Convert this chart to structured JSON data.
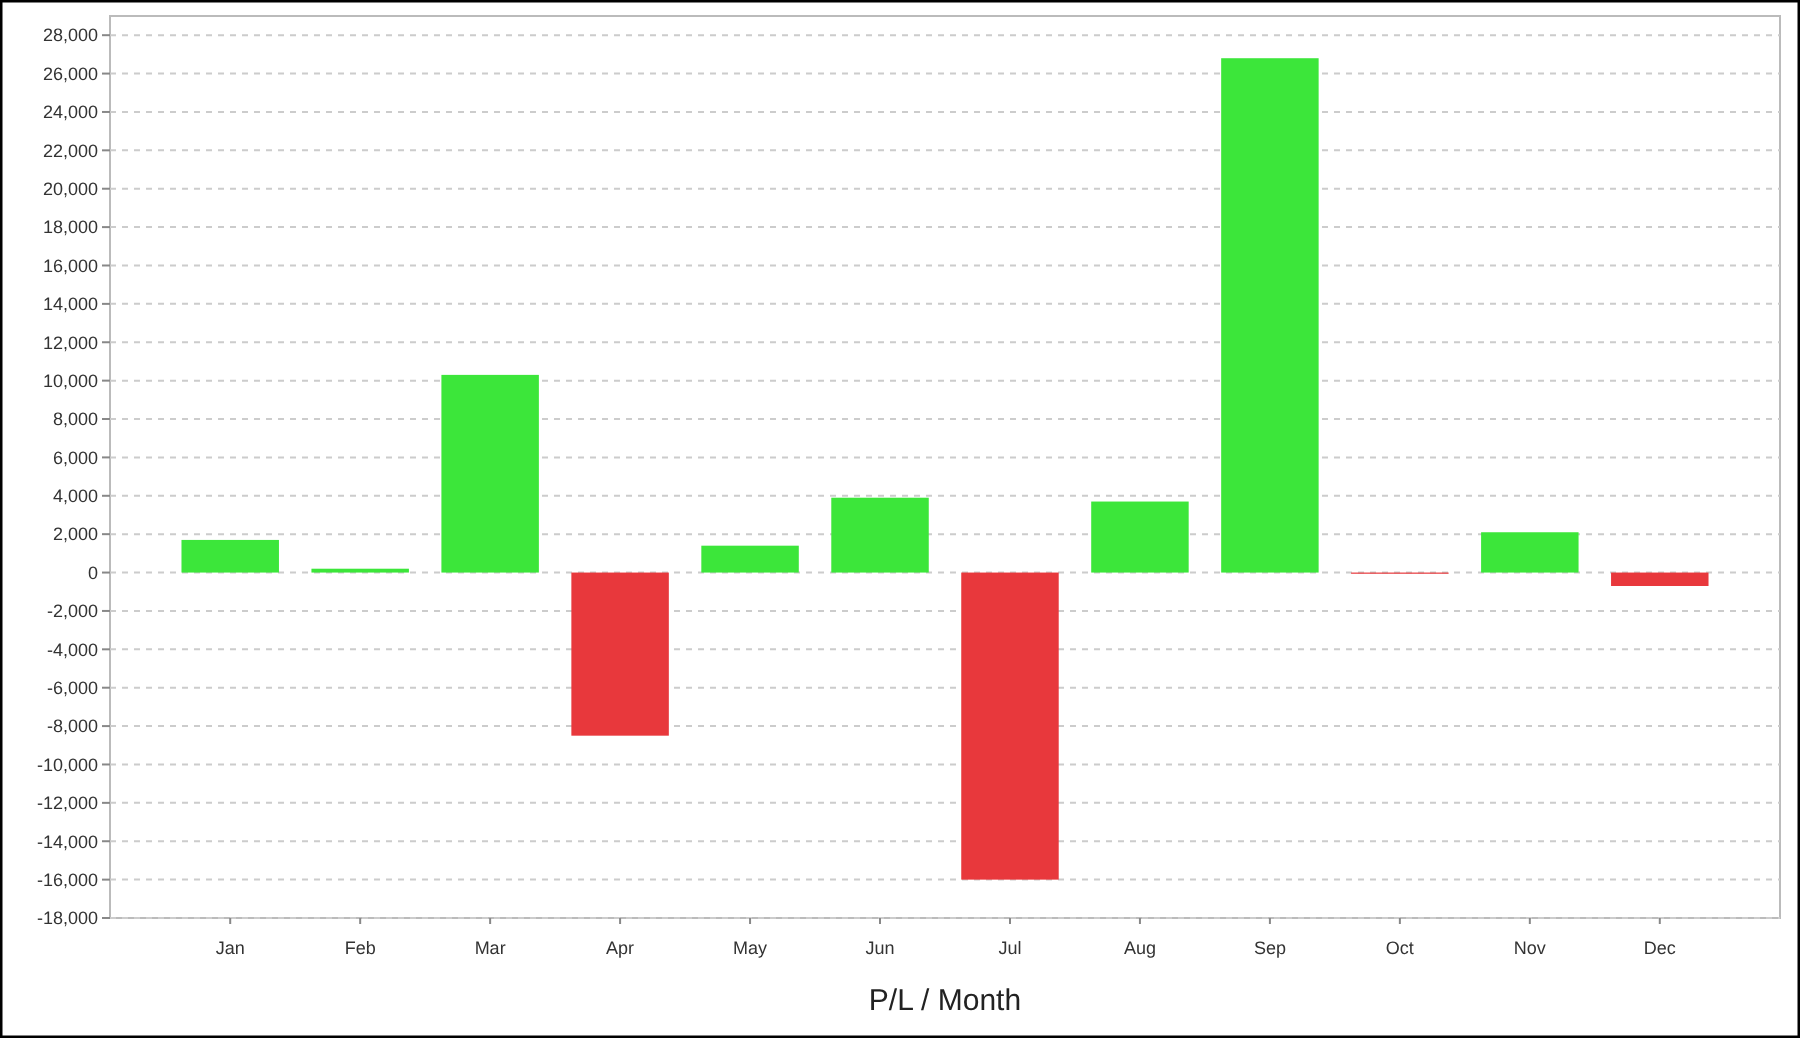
{
  "chart_data": {
    "type": "bar",
    "xlabel": "P/L / Month",
    "categories": [
      "Jan",
      "Feb",
      "Mar",
      "Apr",
      "May",
      "Jun",
      "Jul",
      "Aug",
      "Sep",
      "Oct",
      "Nov",
      "Dec"
    ],
    "values": [
      1700,
      200,
      10300,
      -8500,
      1400,
      3900,
      -16000,
      3700,
      26800,
      -50,
      2100,
      -700
    ],
    "colors": [
      "#3ce63a",
      "#3ce63a",
      "#3ce63a",
      "#e8383c",
      "#3ce63a",
      "#3ce63a",
      "#e8383c",
      "#3ce63a",
      "#3ce63a",
      "#e8383c",
      "#3ce63a",
      "#e8383c"
    ],
    "ylim": [
      -18000,
      29000
    ],
    "yticks": [
      {
        "value": -18000,
        "label": "-18,000"
      },
      {
        "value": -16000,
        "label": "-16,000"
      },
      {
        "value": -14000,
        "label": "-14,000"
      },
      {
        "value": -12000,
        "label": "-12,000"
      },
      {
        "value": -10000,
        "label": "-10,000"
      },
      {
        "value": -8000,
        "label": "-8,000"
      },
      {
        "value": -6000,
        "label": "-6,000"
      },
      {
        "value": -4000,
        "label": "-4,000"
      },
      {
        "value": -2000,
        "label": "-2,000"
      },
      0,
      {
        "value": 2000,
        "label": "2,000"
      },
      {
        "value": 4000,
        "label": "4,000"
      },
      {
        "value": 6000,
        "label": "6,000"
      },
      {
        "value": 8000,
        "label": "8,000"
      },
      {
        "value": 10000,
        "label": "10,000"
      },
      {
        "value": 12000,
        "label": "12,000"
      },
      {
        "value": 14000,
        "label": "14,000"
      },
      {
        "value": 16000,
        "label": "16,000"
      },
      {
        "value": 18000,
        "label": "18,000"
      },
      {
        "value": 20000,
        "label": "20,000"
      },
      {
        "value": 22000,
        "label": "22,000"
      },
      {
        "value": 24000,
        "label": "24,000"
      },
      {
        "value": 26000,
        "label": "26,000"
      },
      {
        "value": 28000,
        "label": "28,000"
      }
    ],
    "grid": "y"
  }
}
